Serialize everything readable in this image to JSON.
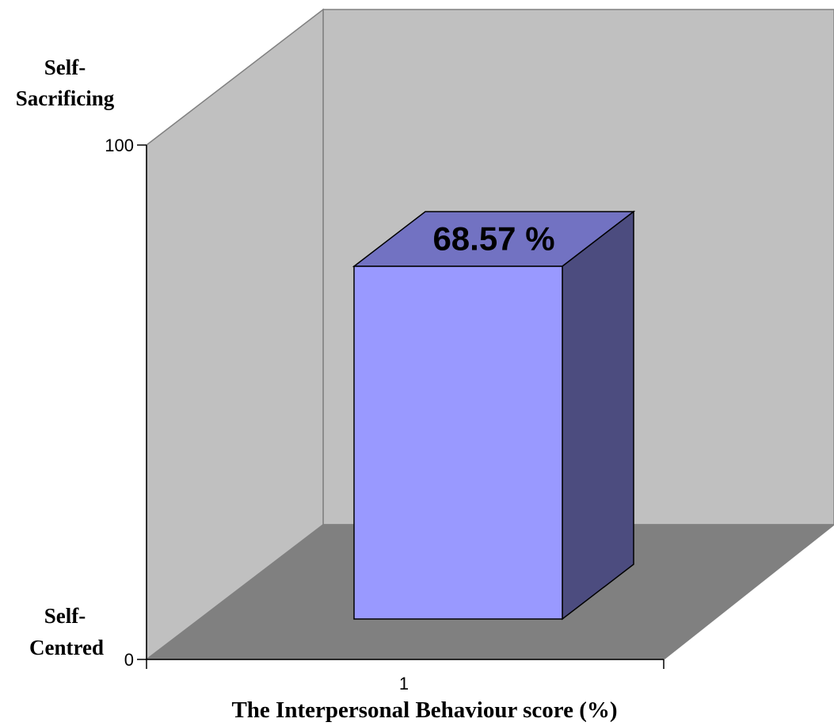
{
  "chart_data": {
    "type": "bar",
    "categories": [
      "1"
    ],
    "values": [
      68.57
    ],
    "data_labels": [
      "68.57 %"
    ],
    "xlabel": "The Interpersonal Behaviour score (%)",
    "ylim": [
      0,
      100
    ],
    "yticks": [
      "0",
      "100"
    ],
    "y_top_label": [
      "Self-",
      "Sacrificing"
    ],
    "y_bottom_label": [
      "Self-",
      "Centred"
    ],
    "three_d": true,
    "grid": false,
    "legend": "none",
    "colors": {
      "bar_front": "#9999ff",
      "bar_top": "#7272c2",
      "bar_side": "#4c4c7f",
      "back_wall": "#c0c0c0",
      "side_wall": "#c0c0c0",
      "floor": "#808080",
      "edges": "#000000"
    }
  }
}
